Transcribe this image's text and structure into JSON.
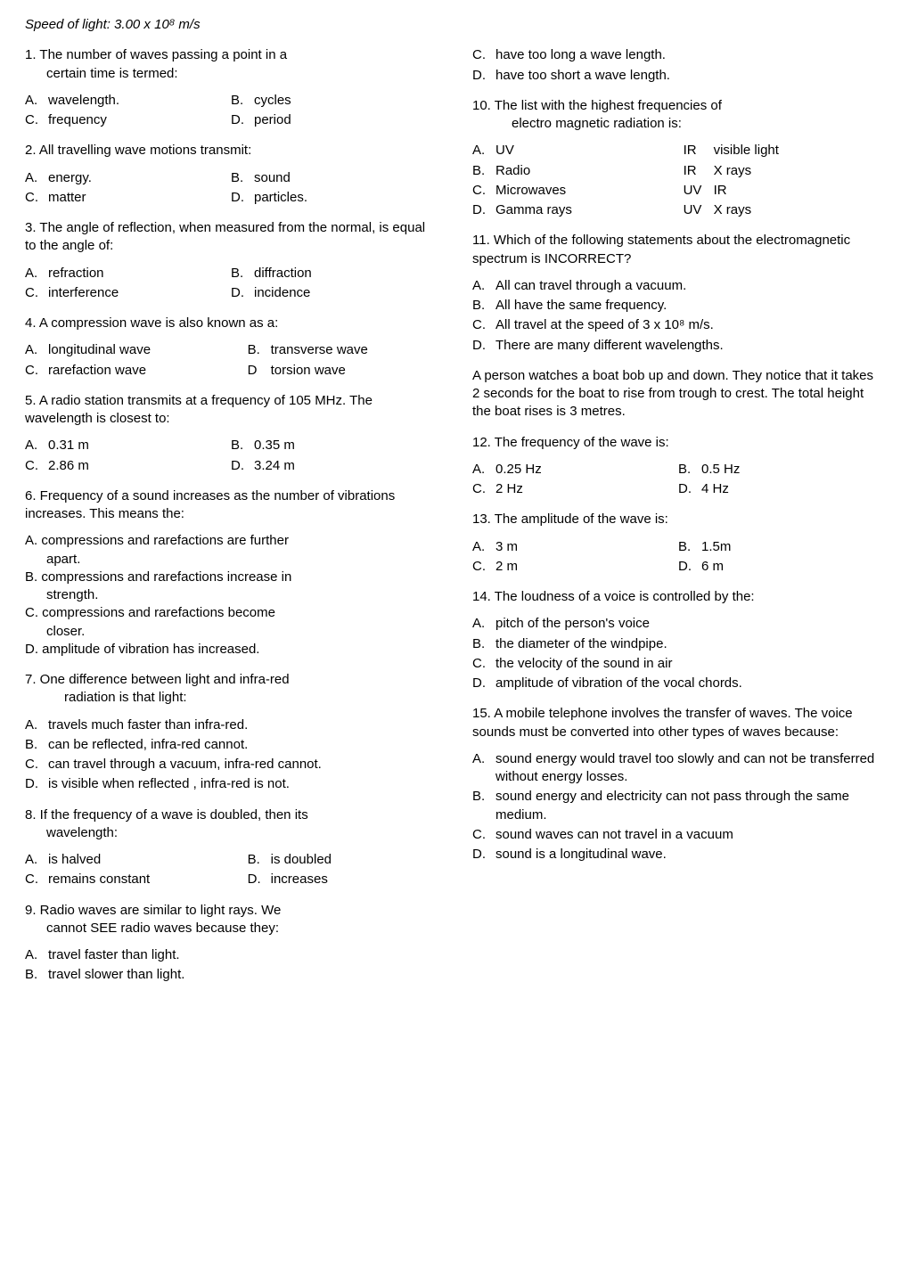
{
  "header": "Speed of light: 3.00 x 10⁸ m/s",
  "left": {
    "q1": {
      "text": "1. The number of waves passing a point in a",
      "text2": "certain time is termed:",
      "a": "A.",
      "av": "wavelength.",
      "b": "B.",
      "bv": "cycles",
      "c": "C.",
      "cv": "frequency",
      "d": "D.",
      "dv": "period"
    },
    "q2": {
      "text": "2. All travelling wave motions transmit:",
      "a": "A.",
      "av": "energy.",
      "b": "B.",
      "bv": "sound",
      "c": "C.",
      "cv": "matter",
      "d": "D.",
      "dv": "particles."
    },
    "q3": {
      "text": "3. The angle of reflection, when measured from the normal, is equal to the angle of:",
      "a": "A.",
      "av": "refraction",
      "b": "B.",
      "bv": "diffraction",
      "c": "C.",
      "cv": "interference",
      "d": "D.",
      "dv": "incidence"
    },
    "q4": {
      "text": "4. A compression wave is also known as a:",
      "a": "A.",
      "av": "longitudinal wave",
      "b": "B.",
      "bv": "transverse wave",
      "c": "C.",
      "cv": "rarefaction wave",
      "d": "D",
      "dv": "torsion wave"
    },
    "q5": {
      "text": "5. A radio station transmits at a frequency of 105 MHz. The wavelength is closest to:",
      "a": "A.",
      "av": "0.31 m",
      "b": "B.",
      "bv": "0.35 m",
      "c": "C.",
      "cv": "2.86 m",
      "d": "D.",
      "dv": "3.24 m"
    },
    "q6": {
      "text": "6. Frequency of a sound increases as the number of vibrations increases. This means the:",
      "a": "A. compressions and rarefactions are further",
      "a2": "apart.",
      "b": "B. compressions and rarefactions increase in",
      "b2": "strength.",
      "c": "C. compressions and rarefactions become",
      "c2": "closer.",
      "d": "D. amplitude of vibration has increased."
    },
    "q7": {
      "text": "7. One difference between light and infra-red",
      "text2": "radiation is that light:",
      "a": "A.",
      "av": "travels much faster than infra-red.",
      "b": "B.",
      "bv": "can be reflected, infra-red cannot.",
      "c": "C.",
      "cv": "can travel through a vacuum, infra-red cannot.",
      "d": "D.",
      "dv": "is visible when reflected , infra-red is not."
    },
    "q8": {
      "text": "8. If the frequency of a wave is doubled, then its",
      "text2": "wavelength:",
      "a": "A.",
      "av": "is halved",
      "b": "B.",
      "bv": "is doubled",
      "c": "C.",
      "cv": "remains constant",
      "d": "D.",
      "dv": "increases"
    },
    "q9": {
      "text": "9. Radio waves are similar to light rays. We",
      "text2": "cannot SEE radio waves because they:",
      "a": "A.",
      "av": "travel faster than light.",
      "b": "B.",
      "bv": "travel slower than light."
    }
  },
  "right": {
    "q9b": {
      "c": "C.",
      "cv": "have too long a wave length.",
      "d": "D.",
      "dv": "have too short a wave length."
    },
    "q10": {
      "text": "10. The list with the highest frequencies of",
      "text2": "electro magnetic radiation is:",
      "a": "A.",
      "av1": "UV",
      "av2": "IR",
      "av3": "visible light",
      "b": "B.",
      "bv1": "Radio",
      "bv2": "IR",
      "bv3": "X rays",
      "c": "C.",
      "cv1": "Microwaves",
      "cv2": "UV",
      "cv3": "IR",
      "d": "D.",
      "dv1": "Gamma rays",
      "dv2": "UV",
      "dv3": "X rays"
    },
    "q11": {
      "text": "11. Which of the following statements about the electromagnetic spectrum is INCORRECT?",
      "a": "A.",
      "av": "All can travel through a vacuum.",
      "b": "B.",
      "bv": "All have the same frequency.",
      "c": "C.",
      "cv": "All travel at the speed of 3 x 10⁸ m/s.",
      "d": "D.",
      "dv": "There are many different wavelengths."
    },
    "context": "A person watches a boat bob up and down. They notice that it takes 2 seconds for the boat to rise from trough to crest. The total height the boat rises is 3 metres.",
    "q12": {
      "text": "12. The frequency of the wave is:",
      "a": "A.",
      "av": "0.25 Hz",
      "b": "B.",
      "bv": "0.5 Hz",
      "c": "C.",
      "cv": "2 Hz",
      "d": "D.",
      "dv": "4 Hz"
    },
    "q13": {
      "text": "13. The amplitude of the wave is:",
      "a": "A.",
      "av": "3 m",
      "b": "B.",
      "bv": "1.5m",
      "c": "C.",
      "cv": "2 m",
      "d": "D.",
      "dv": "6 m"
    },
    "q14": {
      "text": "14. The loudness of a voice is controlled by the:",
      "a": "A.",
      "av": "pitch of the person's voice",
      "b": "B.",
      "bv": "the diameter of the windpipe.",
      "c": "C.",
      "cv": "the velocity of the sound in air",
      "d": "D.",
      "dv": "amplitude of vibration of the vocal chords."
    },
    "q15": {
      "text": "15. A mobile telephone involves the transfer of waves. The voice sounds must be converted into other types of waves because:",
      "a": "A.",
      "av": "sound energy would travel too slowly and can not be transferred without energy losses.",
      "b": "B.",
      "bv": "sound energy and electricity can not pass through the same medium.",
      "c": "C.",
      "cv": "sound waves can not travel in a vacuum",
      "d": "D.",
      "dv": "sound is a longitudinal wave."
    }
  }
}
